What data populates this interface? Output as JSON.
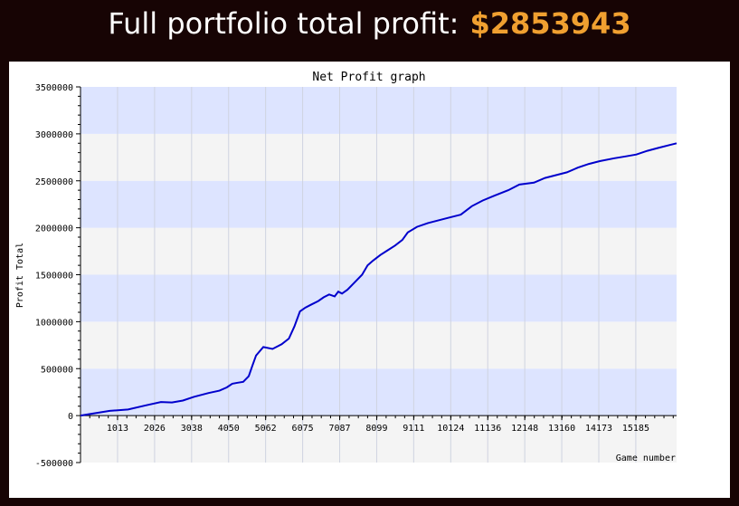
{
  "header": {
    "label": "Full portfolio total profit:",
    "amount": "$2853943"
  },
  "colors": {
    "band_blue": "#dde4ff",
    "band_gray": "#f4f4f4",
    "line": "#0000cc",
    "amount": "#f0a030"
  },
  "chart_data": {
    "type": "line",
    "title": "Net Profit graph",
    "xlabel": "Game number",
    "ylabel": "Profit Total",
    "xlim": [
      0,
      16300
    ],
    "ylim": [
      -500000,
      3500000
    ],
    "x_ticks": [
      1013,
      2026,
      3038,
      4050,
      5062,
      6075,
      7087,
      8099,
      9111,
      10124,
      11136,
      12148,
      13160,
      14173,
      15185
    ],
    "y_ticks": [
      -500000,
      0,
      500000,
      1000000,
      1500000,
      2000000,
      2500000,
      3000000,
      3500000
    ],
    "grid": true,
    "series": [
      {
        "points": [
          [
            0,
            0
          ],
          [
            300,
            20000
          ],
          [
            800,
            50000
          ],
          [
            1300,
            65000
          ],
          [
            1800,
            110000
          ],
          [
            2200,
            145000
          ],
          [
            2500,
            140000
          ],
          [
            2800,
            160000
          ],
          [
            3100,
            200000
          ],
          [
            3500,
            240000
          ],
          [
            3800,
            265000
          ],
          [
            4000,
            300000
          ],
          [
            4150,
            340000
          ],
          [
            4300,
            350000
          ],
          [
            4450,
            360000
          ],
          [
            4600,
            420000
          ],
          [
            4700,
            530000
          ],
          [
            4800,
            640000
          ],
          [
            5000,
            730000
          ],
          [
            5250,
            710000
          ],
          [
            5500,
            760000
          ],
          [
            5700,
            820000
          ],
          [
            5850,
            950000
          ],
          [
            6000,
            1110000
          ],
          [
            6150,
            1150000
          ],
          [
            6300,
            1180000
          ],
          [
            6500,
            1220000
          ],
          [
            6650,
            1260000
          ],
          [
            6800,
            1290000
          ],
          [
            6950,
            1270000
          ],
          [
            7050,
            1320000
          ],
          [
            7150,
            1300000
          ],
          [
            7300,
            1340000
          ],
          [
            7500,
            1420000
          ],
          [
            7700,
            1500000
          ],
          [
            7850,
            1600000
          ],
          [
            8000,
            1650000
          ],
          [
            8200,
            1710000
          ],
          [
            8400,
            1760000
          ],
          [
            8600,
            1810000
          ],
          [
            8800,
            1870000
          ],
          [
            8950,
            1950000
          ],
          [
            9200,
            2010000
          ],
          [
            9500,
            2050000
          ],
          [
            9800,
            2080000
          ],
          [
            10100,
            2110000
          ],
          [
            10400,
            2140000
          ],
          [
            10700,
            2230000
          ],
          [
            11000,
            2290000
          ],
          [
            11300,
            2340000
          ],
          [
            11700,
            2400000
          ],
          [
            12000,
            2460000
          ],
          [
            12400,
            2480000
          ],
          [
            12700,
            2530000
          ],
          [
            13000,
            2560000
          ],
          [
            13300,
            2590000
          ],
          [
            13600,
            2640000
          ],
          [
            13900,
            2680000
          ],
          [
            14200,
            2710000
          ],
          [
            14600,
            2740000
          ],
          [
            14900,
            2760000
          ],
          [
            15200,
            2780000
          ],
          [
            15500,
            2820000
          ],
          [
            15800,
            2850000
          ],
          [
            16100,
            2880000
          ],
          [
            16300,
            2900000
          ]
        ]
      }
    ]
  }
}
